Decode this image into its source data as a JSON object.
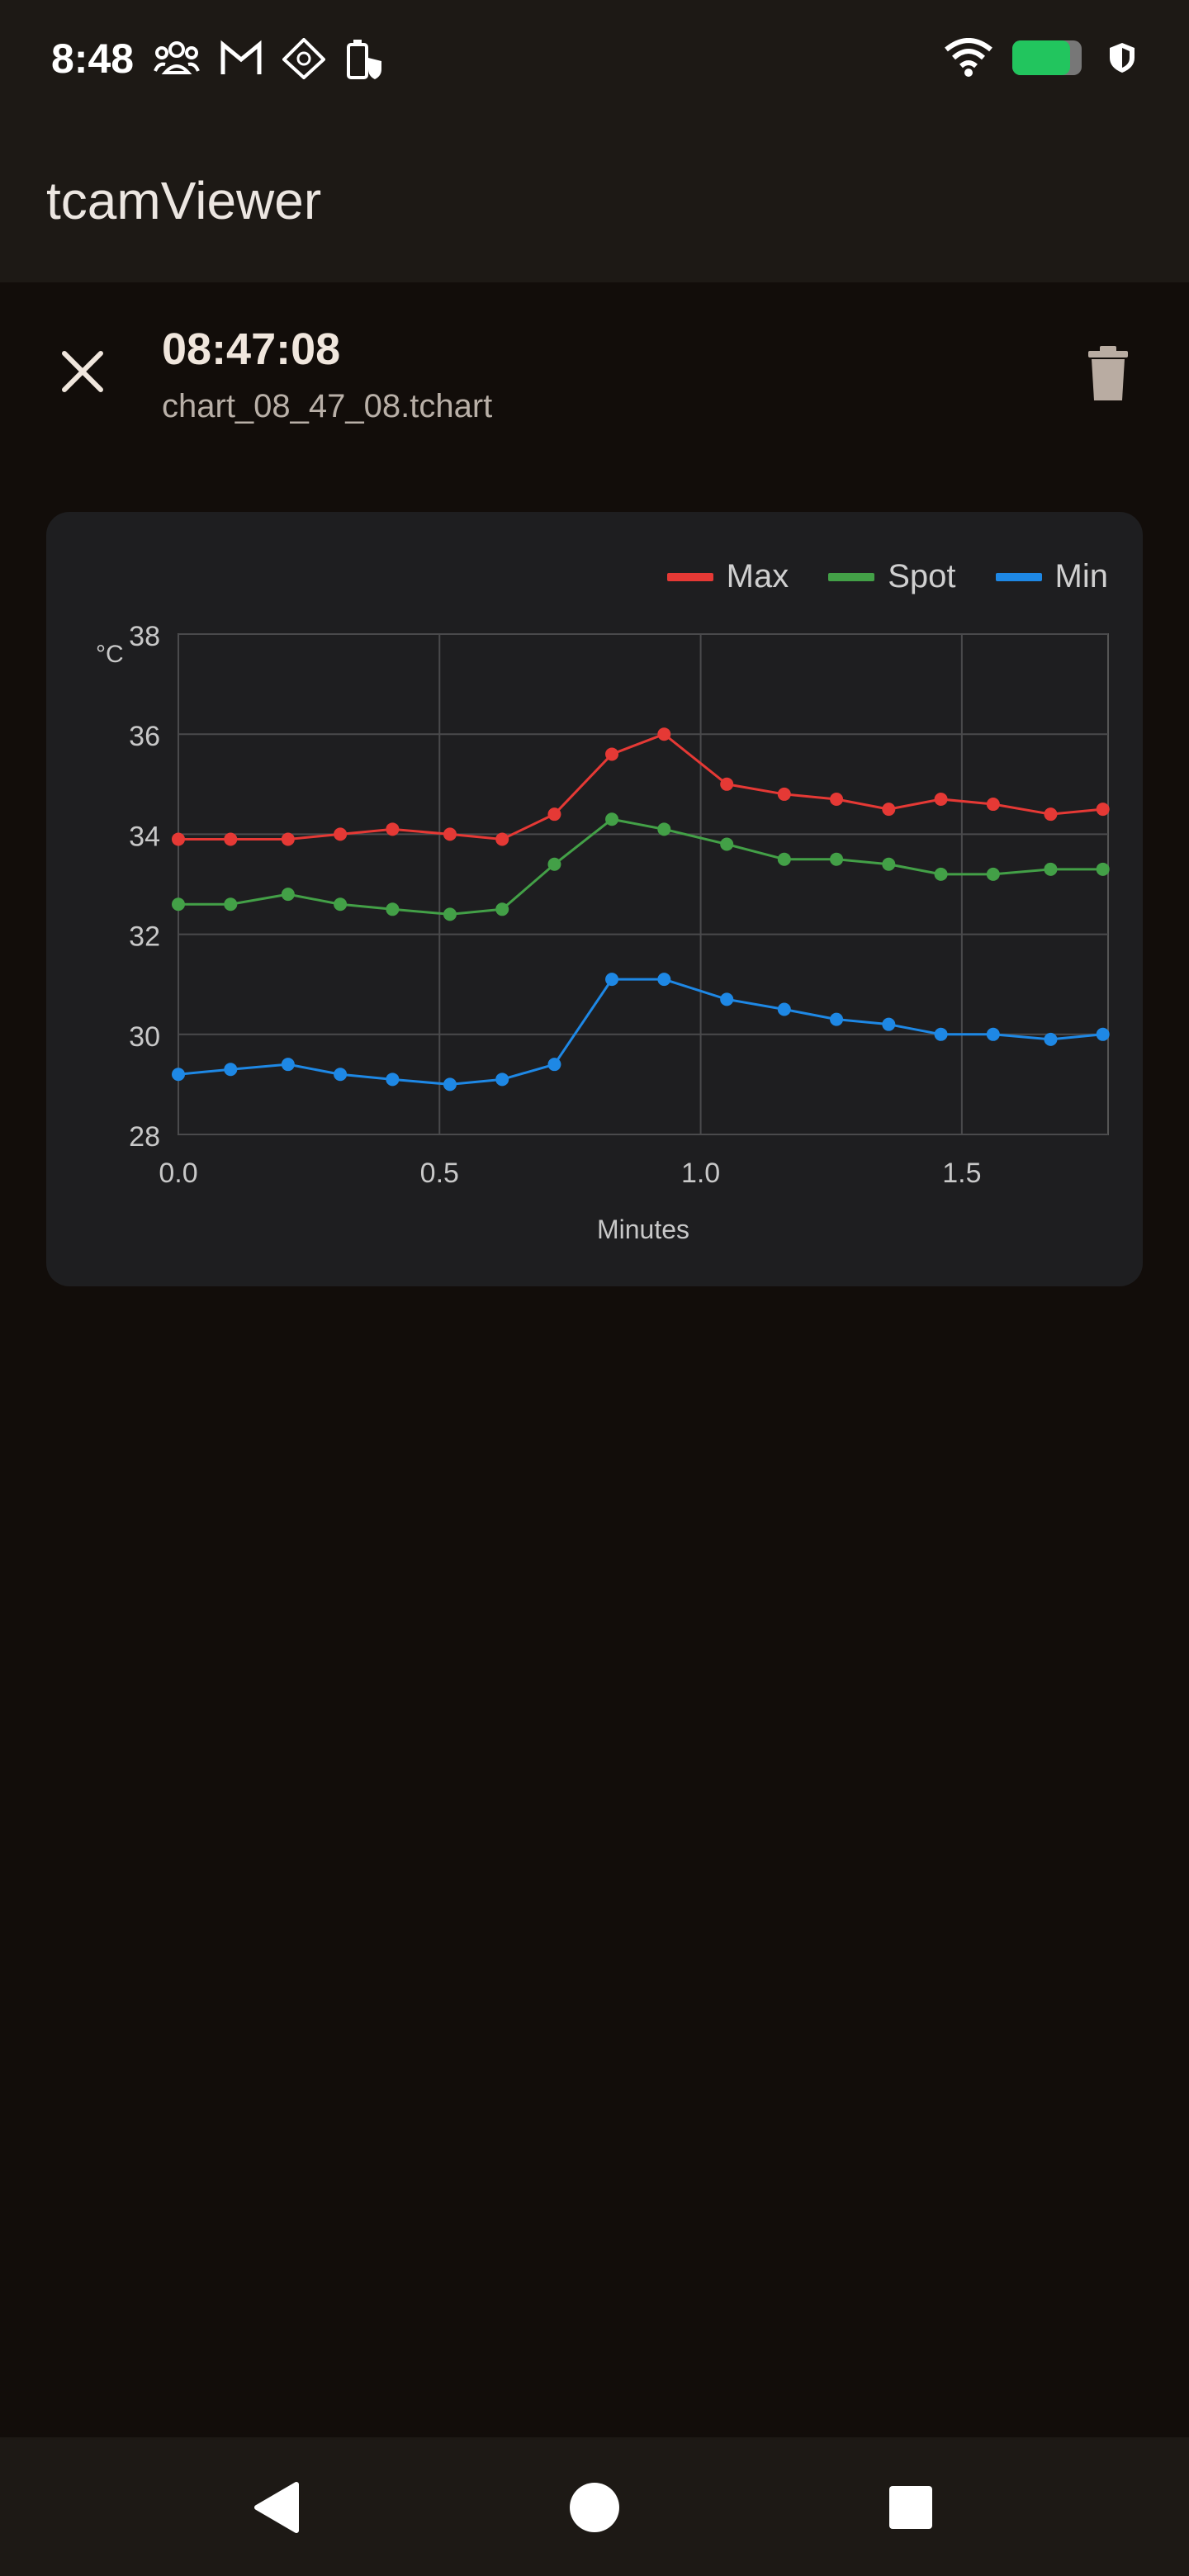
{
  "status_bar": {
    "time": "8:48",
    "icons_left": [
      "group-icon",
      "gmail-icon",
      "diamond-app-icon",
      "battery-saver-icon"
    ],
    "icons_right": [
      "wifi-icon",
      "battery-icon",
      "shield-icon"
    ]
  },
  "app_bar": {
    "title": "tcamViewer"
  },
  "chart_header": {
    "time": "08:47:08",
    "filename": "chart_08_47_08.tchart",
    "close_icon": "close-icon",
    "delete_icon": "trash-icon"
  },
  "legend": [
    {
      "name": "Max",
      "color": "#e53935"
    },
    {
      "name": "Spot",
      "color": "#43a047"
    },
    {
      "name": "Min",
      "color": "#1e88e5"
    }
  ],
  "chart_data": {
    "type": "line",
    "title": "",
    "xlabel": "Minutes",
    "ylabel": "°C",
    "xlim": [
      0,
      1.78
    ],
    "ylim": [
      28,
      38
    ],
    "x_ticks": [
      "0.0",
      "0.5",
      "1.0",
      "1.5"
    ],
    "y_ticks": [
      "28",
      "30",
      "32",
      "34",
      "36",
      "38"
    ],
    "grid": true,
    "legend_position": "top-right",
    "series": [
      {
        "name": "Max",
        "color": "#e53935",
        "x": [
          0.0,
          0.1,
          0.21,
          0.31,
          0.41,
          0.52,
          0.62,
          0.72,
          0.83,
          0.93,
          1.05,
          1.16,
          1.26,
          1.36,
          1.46,
          1.56,
          1.67,
          1.77
        ],
        "y": [
          33.9,
          33.9,
          33.9,
          34.0,
          34.1,
          34.0,
          33.9,
          34.4,
          35.6,
          36.0,
          35.0,
          34.8,
          34.7,
          34.5,
          34.7,
          34.6,
          34.4,
          34.5
        ]
      },
      {
        "name": "Spot",
        "color": "#43a047",
        "x": [
          0.0,
          0.1,
          0.21,
          0.31,
          0.41,
          0.52,
          0.62,
          0.72,
          0.83,
          0.93,
          1.05,
          1.16,
          1.26,
          1.36,
          1.46,
          1.56,
          1.67,
          1.77
        ],
        "y": [
          32.6,
          32.6,
          32.8,
          32.6,
          32.5,
          32.4,
          32.5,
          33.4,
          34.3,
          34.1,
          33.8,
          33.5,
          33.5,
          33.4,
          33.2,
          33.2,
          33.3,
          33.3
        ]
      },
      {
        "name": "Min",
        "color": "#1e88e5",
        "x": [
          0.0,
          0.1,
          0.21,
          0.31,
          0.41,
          0.52,
          0.62,
          0.72,
          0.83,
          0.93,
          1.05,
          1.16,
          1.26,
          1.36,
          1.46,
          1.56,
          1.67,
          1.77
        ],
        "y": [
          29.2,
          29.3,
          29.4,
          29.2,
          29.1,
          29.0,
          29.1,
          29.4,
          31.1,
          31.1,
          30.7,
          30.5,
          30.3,
          30.2,
          30.0,
          30.0,
          29.9,
          30.0
        ]
      }
    ]
  },
  "nav_bar": {
    "icons": [
      "back-icon",
      "home-icon",
      "recents-icon"
    ]
  }
}
